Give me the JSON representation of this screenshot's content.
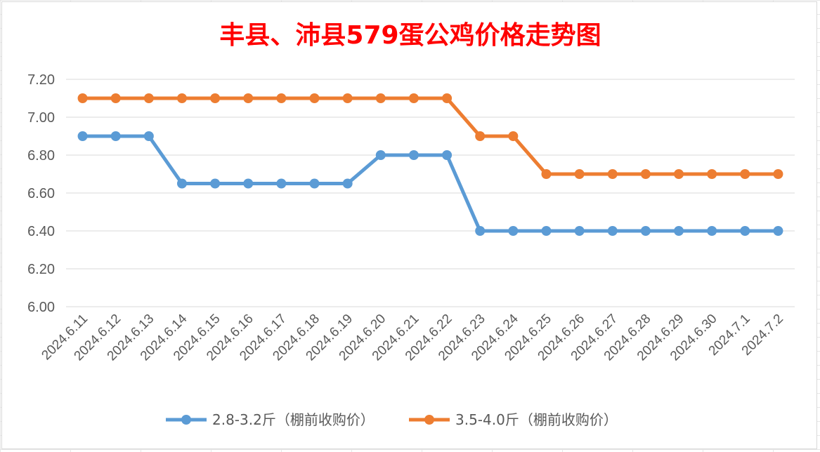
{
  "chart_data": {
    "type": "line",
    "title": "丰县、沛县579蛋公鸡价格走势图",
    "categories": [
      "2024.6.11",
      "2024.6.12",
      "2024.6.13",
      "2024.6.14",
      "2024.6.15",
      "2024.6.16",
      "2024.6.17",
      "2024.6.18",
      "2024.6.19",
      "2024.6.20",
      "2024.6.21",
      "2024.6.22",
      "2024.6.23",
      "2024.6.24",
      "2024.6.25",
      "2024.6.26",
      "2024.6.27",
      "2024.6.28",
      "2024.6.29",
      "2024.6.30",
      "2024.7.1",
      "2024.7.2"
    ],
    "ylim": [
      6.0,
      7.2
    ],
    "yticks": [
      "6.00",
      "6.20",
      "6.40",
      "6.60",
      "6.80",
      "7.00",
      "7.20"
    ],
    "grid": true,
    "legend_position": "bottom",
    "series": [
      {
        "name": "2.8-3.2斤（棚前收购价）",
        "color": "#5b9bd5",
        "values": [
          6.9,
          6.9,
          6.9,
          6.65,
          6.65,
          6.65,
          6.65,
          6.65,
          6.65,
          6.8,
          6.8,
          6.8,
          6.4,
          6.4,
          6.4,
          6.4,
          6.4,
          6.4,
          6.4,
          6.4,
          6.4,
          6.4
        ]
      },
      {
        "name": "3.5-4.0斤（棚前收购价）",
        "color": "#ed7d31",
        "values": [
          7.1,
          7.1,
          7.1,
          7.1,
          7.1,
          7.1,
          7.1,
          7.1,
          7.1,
          7.1,
          7.1,
          7.1,
          6.9,
          6.9,
          6.7,
          6.7,
          6.7,
          6.7,
          6.7,
          6.7,
          6.7,
          6.7
        ]
      }
    ]
  }
}
